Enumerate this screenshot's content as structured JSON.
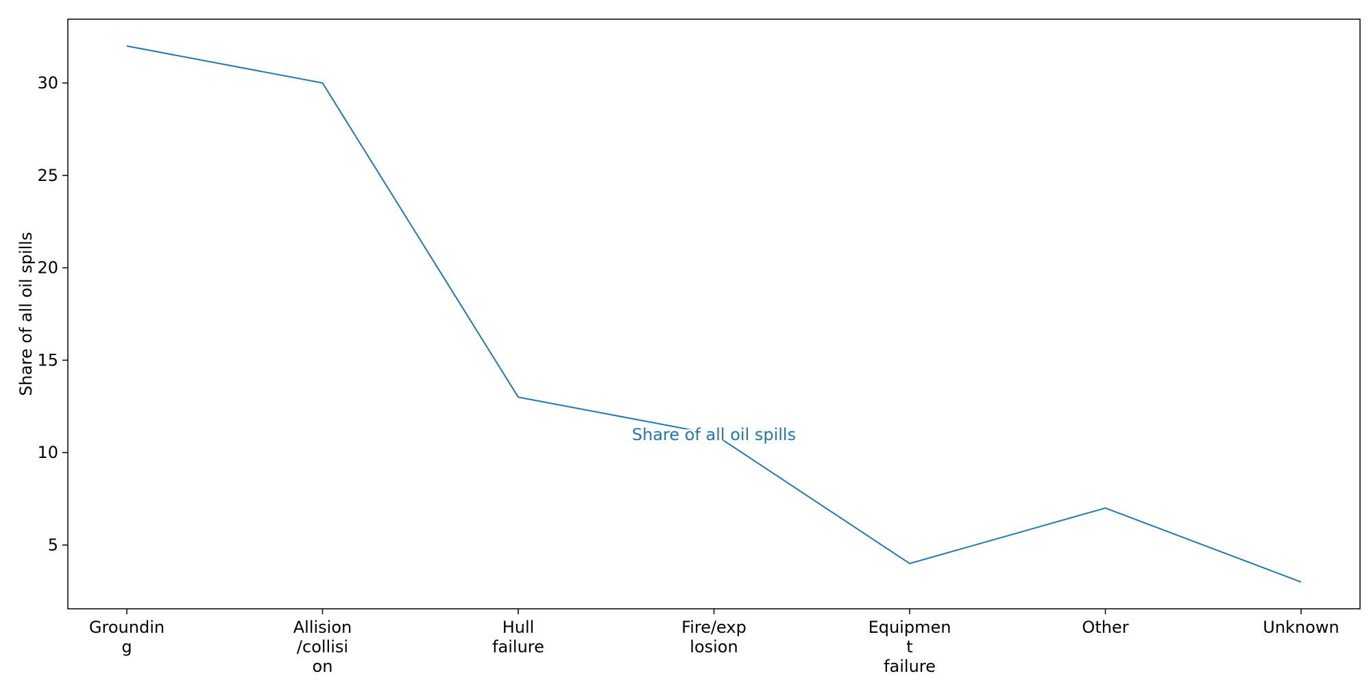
{
  "chart_data": {
    "type": "line",
    "title": "",
    "xlabel": "",
    "ylabel": "Share of all oil spills",
    "categories": [
      [
        "Groundin",
        "g"
      ],
      [
        "Allision",
        "/collisi",
        "on"
      ],
      [
        "Hull",
        "failure"
      ],
      [
        "Fire/exp",
        "losion"
      ],
      [
        "Equipmen",
        "t",
        "failure"
      ],
      [
        "Other"
      ],
      [
        "Unknown"
      ]
    ],
    "series": [
      {
        "name": "Share of all oil spills",
        "values": [
          32,
          30,
          13,
          11,
          4,
          7,
          3
        ],
        "color": "#1f77b4"
      }
    ],
    "ylim": [
      1.55,
      33.45
    ],
    "yticks": [
      5,
      10,
      15,
      20,
      25,
      30
    ],
    "grid": false,
    "series_label_position": "center of line"
  }
}
